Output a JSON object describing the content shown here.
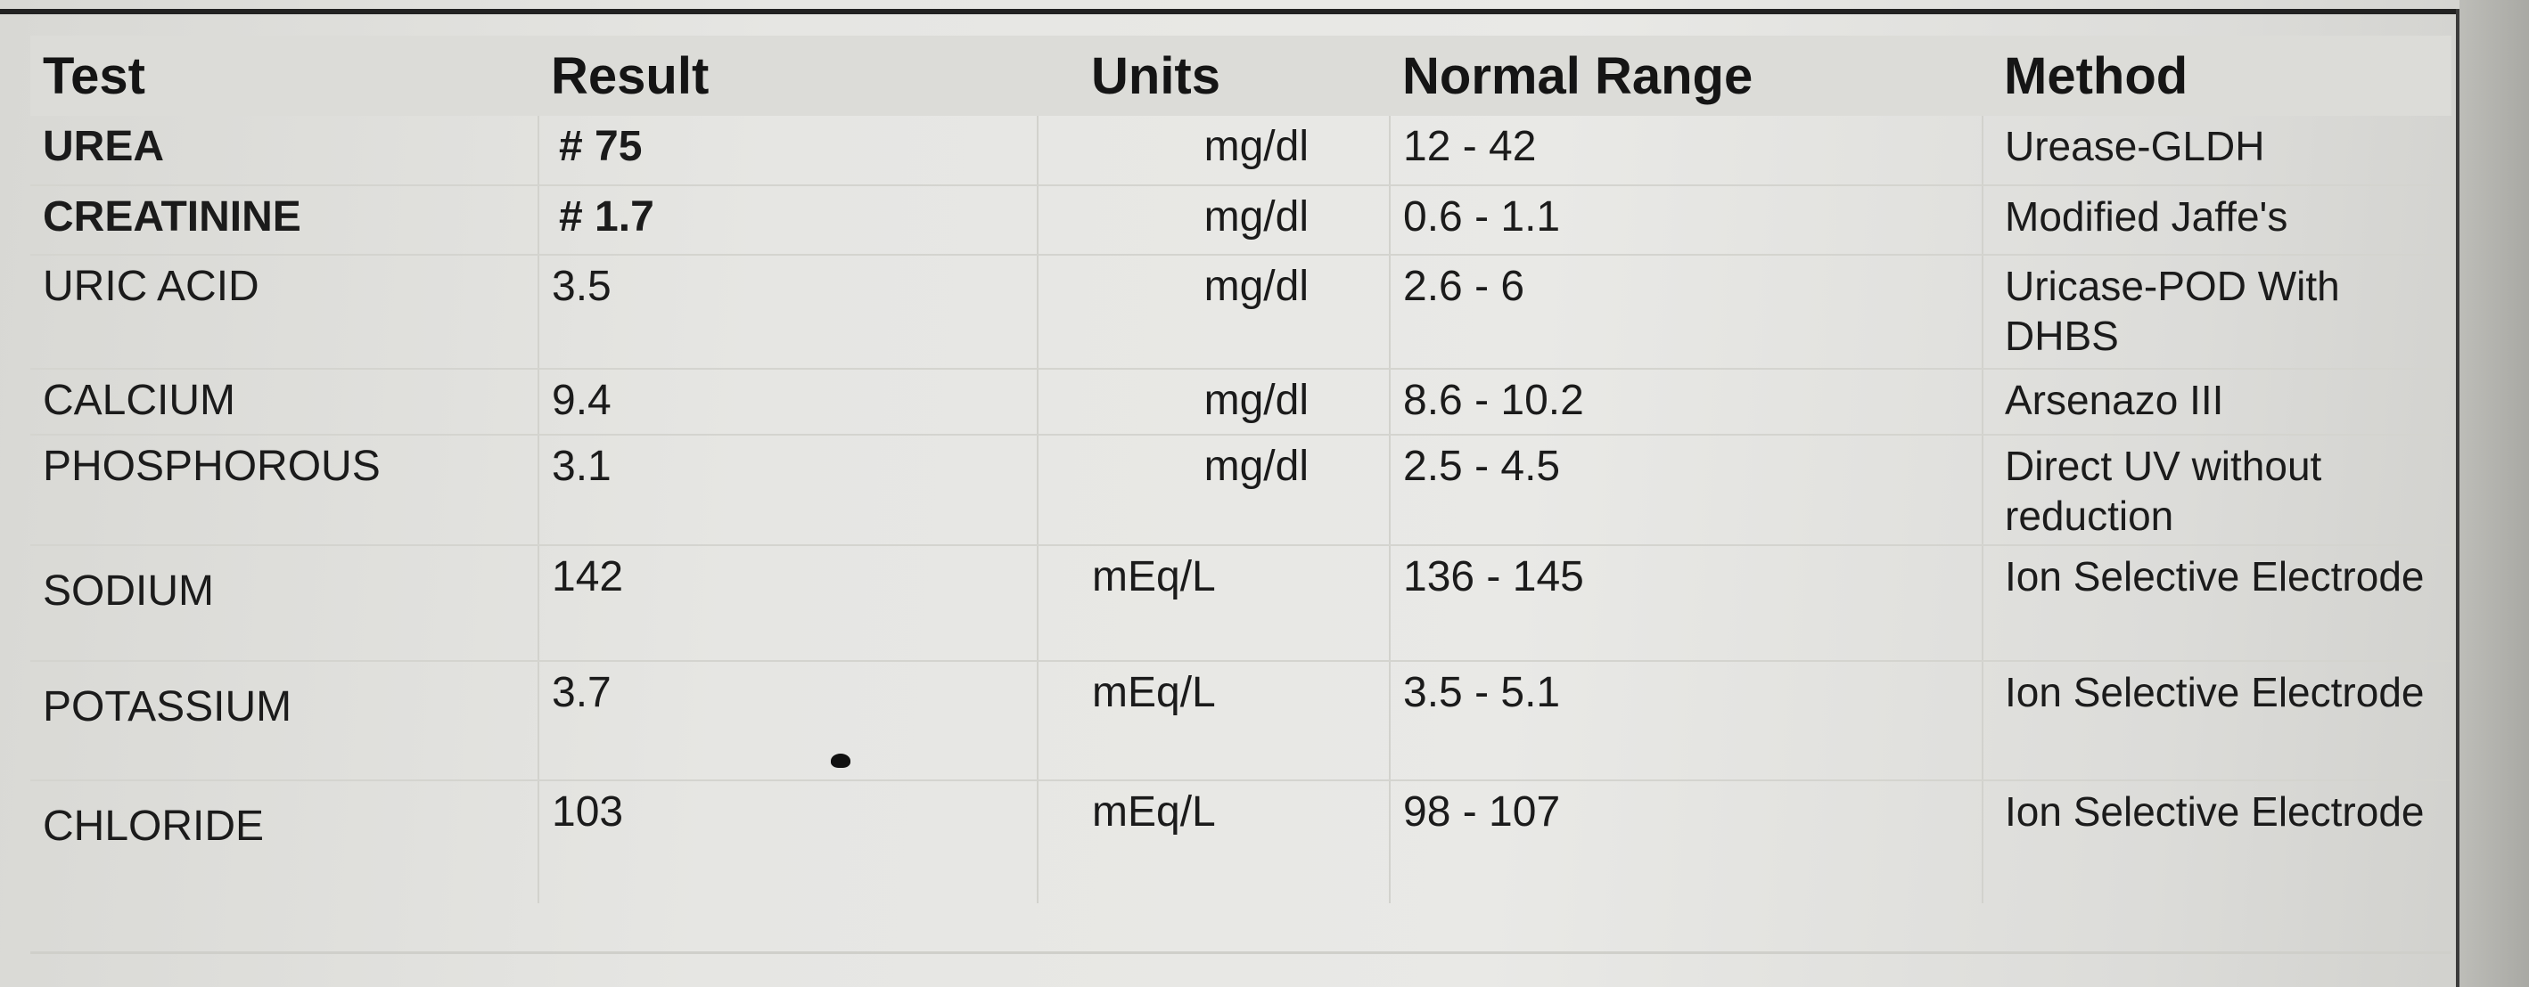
{
  "headers": {
    "test": "Test",
    "result": "Result",
    "units": "Units",
    "normal_range": "Normal Range",
    "method": "Method"
  },
  "rows": [
    {
      "test": "UREA",
      "result": "# 75",
      "units": "mg/dl",
      "range": "12 - 42",
      "method": "Urease-GLDH"
    },
    {
      "test": "CREATININE",
      "result": "# 1.7",
      "units": "mg/dl",
      "range": "0.6 - 1.1",
      "method": "Modified Jaffe's"
    },
    {
      "test": "URIC ACID",
      "result": "3.5",
      "units": "mg/dl",
      "range": "2.6 - 6",
      "method": "Uricase-POD With DHBS"
    },
    {
      "test": "CALCIUM",
      "result": "9.4",
      "units": "mg/dl",
      "range": "8.6 - 10.2",
      "method": "Arsenazo III"
    },
    {
      "test": "PHOSPHOROUS",
      "result": "3.1",
      "units": "mg/dl",
      "range": "2.5 - 4.5",
      "method": "Direct UV without reduction"
    },
    {
      "test": "SODIUM",
      "result": "142",
      "units": "mEq/L",
      "range": "136 - 145",
      "method": "Ion Selective Electrode"
    },
    {
      "test": "POTASSIUM",
      "result": "3.7",
      "units": "mEq/L",
      "range": "3.5 - 5.1",
      "method": "Ion Selective Electrode"
    },
    {
      "test": "CHLORIDE",
      "result": "103",
      "units": "mEq/L",
      "range": "98 - 107",
      "method": "Ion Selective Electrode"
    }
  ]
}
